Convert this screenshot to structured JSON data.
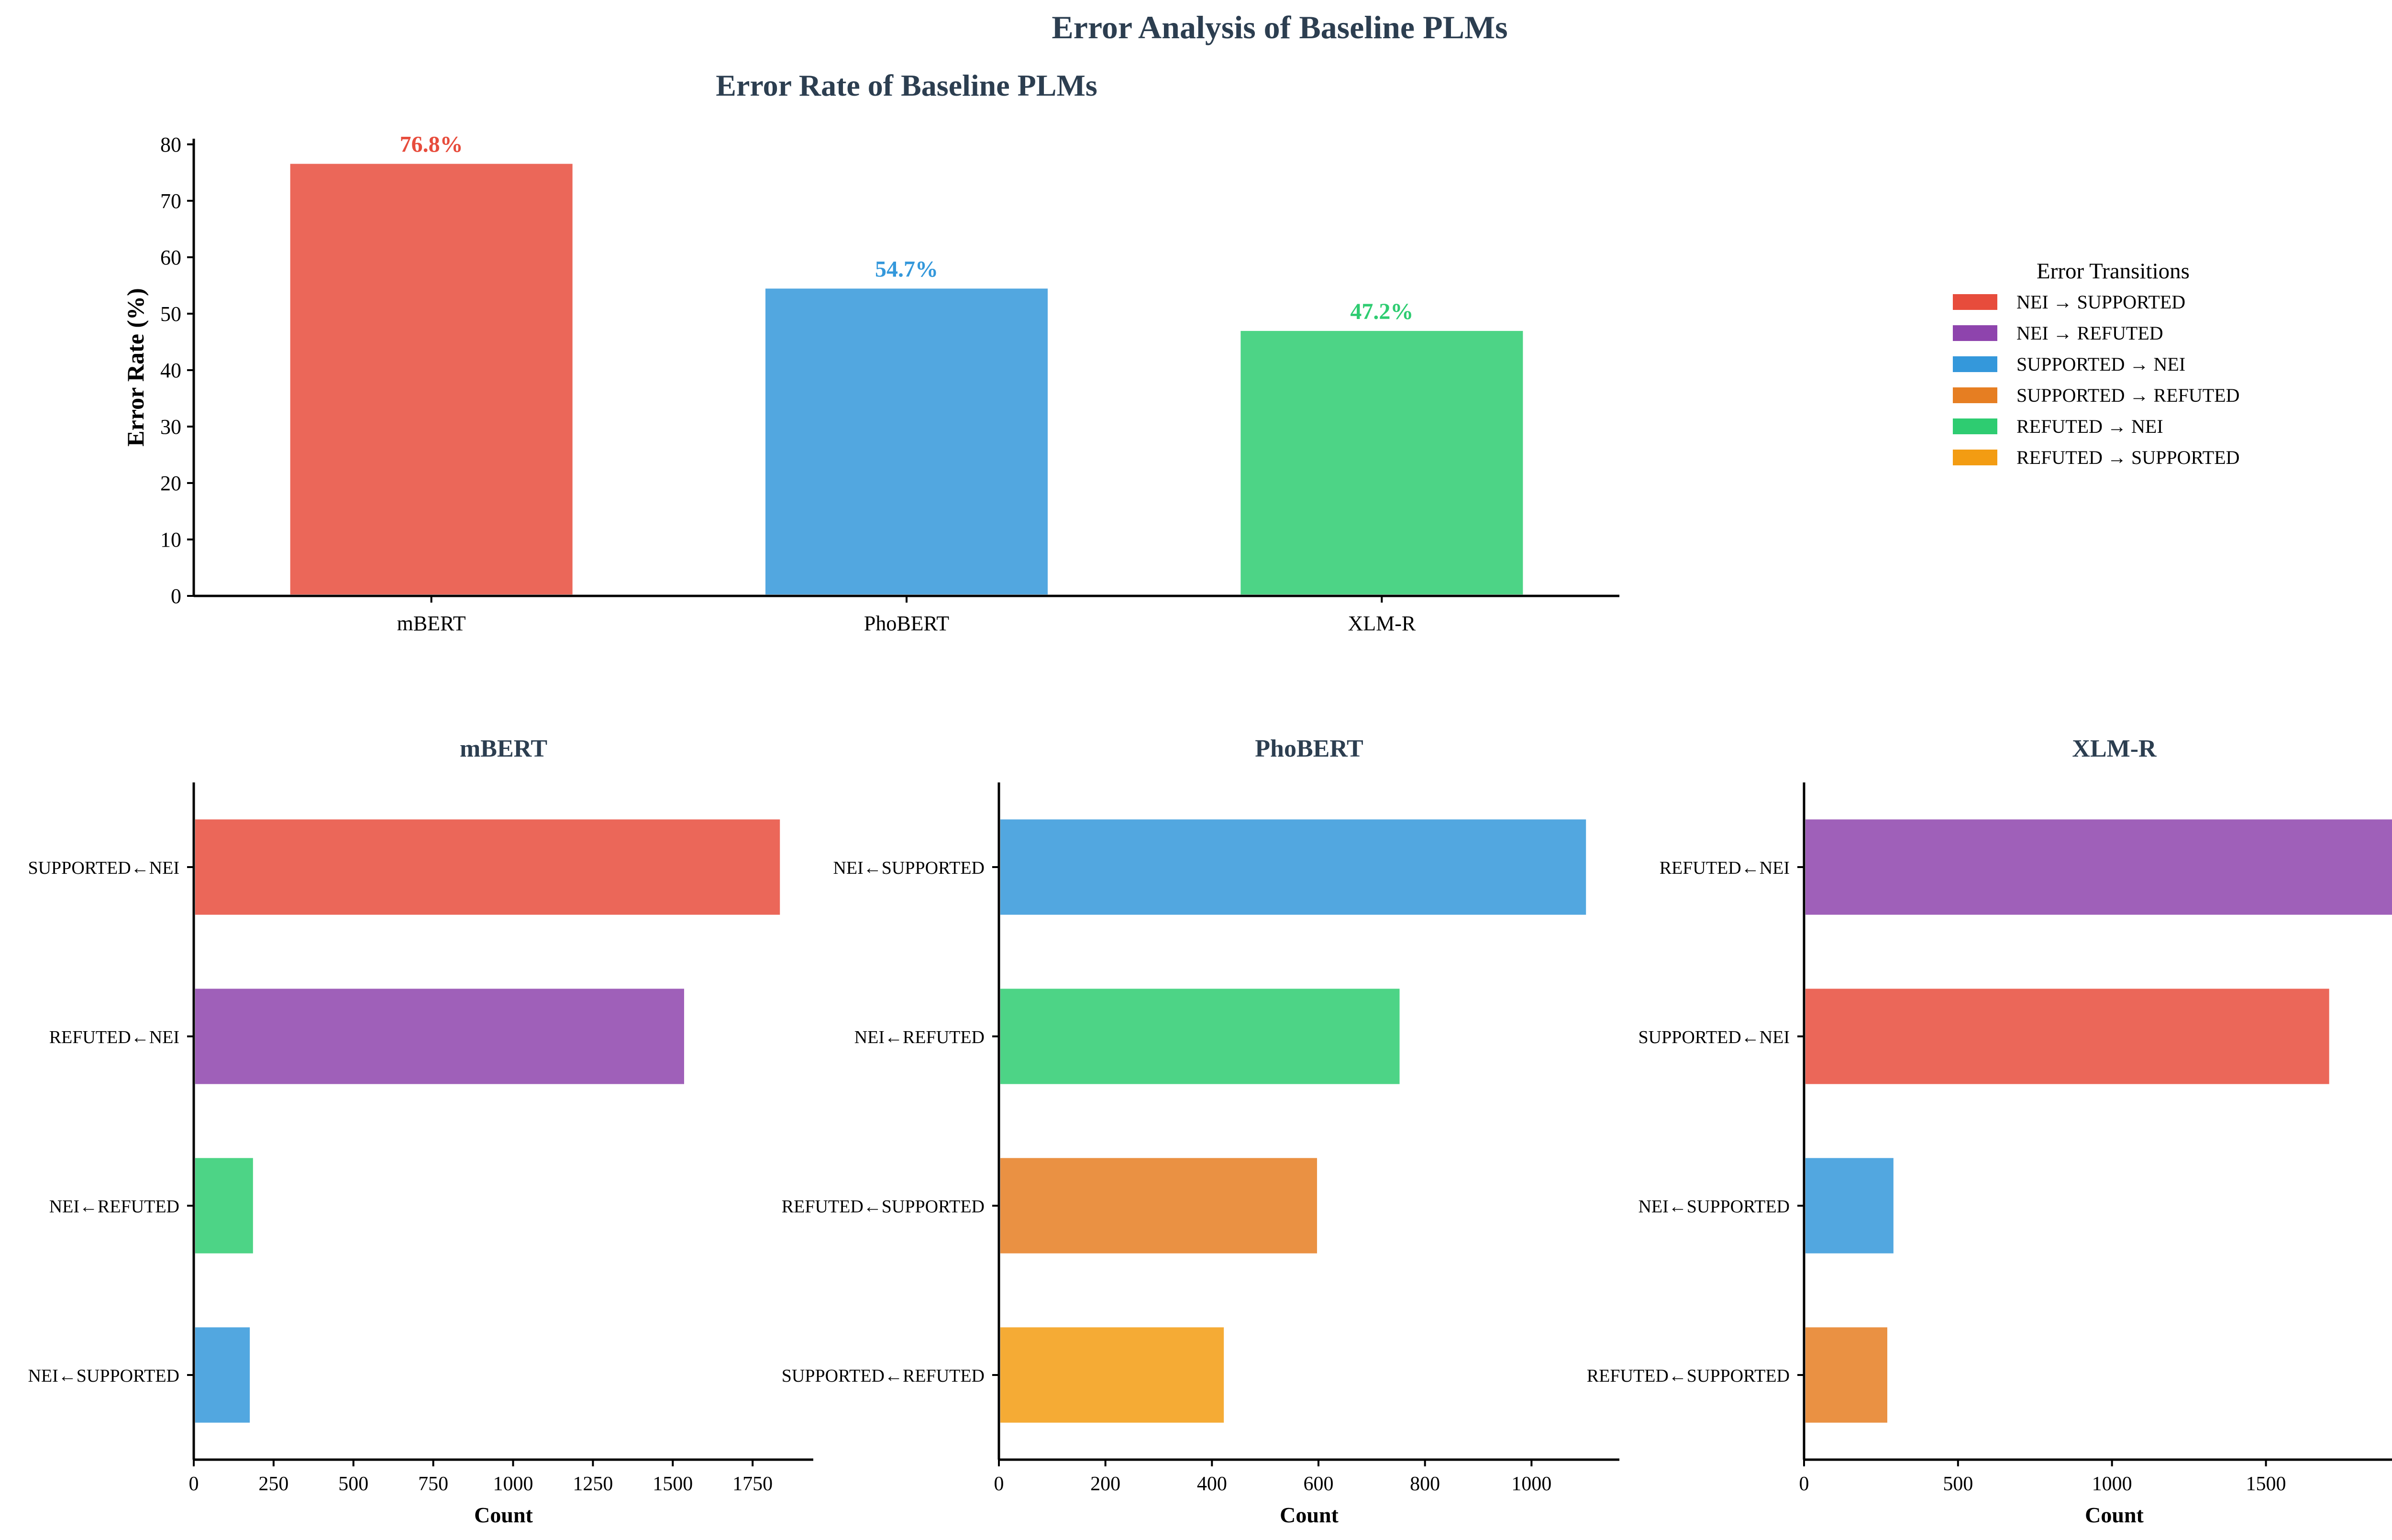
{
  "figure": {
    "title": "Error Analysis of Baseline PLMs"
  },
  "legend": {
    "title": "Error Transitions",
    "items": [
      {
        "label": "NEI → SUPPORTED",
        "color": "#e74c3c"
      },
      {
        "label": "NEI → REFUTED",
        "color": "#8e44ad"
      },
      {
        "label": "SUPPORTED → NEI",
        "color": "#3498db"
      },
      {
        "label": "SUPPORTED → REFUTED",
        "color": "#e67e22"
      },
      {
        "label": "REFUTED → NEI",
        "color": "#2ecc71"
      },
      {
        "label": "REFUTED → SUPPORTED",
        "color": "#f39c12"
      }
    ]
  },
  "chart_data": [
    {
      "type": "bar",
      "title": "Error Rate of Baseline PLMs",
      "xlabel": "",
      "ylabel": "Error Rate (%)",
      "categories": [
        "mBERT",
        "PhoBERT",
        "XLM-R"
      ],
      "values": [
        76.8,
        54.7,
        47.2
      ],
      "value_labels": [
        "76.8%",
        "54.7%",
        "47.2%"
      ],
      "colors": [
        "#e74c3c",
        "#3498db",
        "#2ecc71"
      ],
      "ylim": [
        0,
        81
      ],
      "yticks": [
        0,
        10,
        20,
        30,
        40,
        50,
        60,
        70,
        80
      ]
    },
    {
      "type": "bar",
      "orientation": "horizontal",
      "title": "mBERT",
      "xlabel": "Count",
      "categories": [
        "SUPPORTED←NEI",
        "REFUTED←NEI",
        "NEI←REFUTED",
        "NEI←SUPPORTED"
      ],
      "values": [
        1840,
        1540,
        190,
        180
      ],
      "colors": [
        "#e74c3c",
        "#8e44ad",
        "#2ecc71",
        "#3498db"
      ],
      "xlim": [
        0,
        1940
      ],
      "xticks": [
        0,
        250,
        500,
        750,
        1000,
        1250,
        1500,
        1750
      ]
    },
    {
      "type": "bar",
      "orientation": "horizontal",
      "title": "PhoBERT",
      "xlabel": "Count",
      "categories": [
        "NEI←SUPPORTED",
        "NEI←REFUTED",
        "REFUTED←SUPPORTED",
        "SUPPORTED←REFUTED"
      ],
      "values": [
        1105,
        755,
        600,
        425
      ],
      "colors": [
        "#3498db",
        "#2ecc71",
        "#e67e22",
        "#f39c12"
      ],
      "xlim": [
        0,
        1165
      ],
      "xticks": [
        0,
        200,
        400,
        600,
        800,
        1000
      ]
    },
    {
      "type": "bar",
      "orientation": "horizontal",
      "title": "XLM-R",
      "xlabel": "Count",
      "categories": [
        "REFUTED←NEI",
        "SUPPORTED←NEI",
        "NEI←SUPPORTED",
        "REFUTED←SUPPORTED"
      ],
      "values": [
        1920,
        1710,
        295,
        275
      ],
      "colors": [
        "#8e44ad",
        "#e74c3c",
        "#3498db",
        "#e67e22"
      ],
      "xlim": [
        0,
        2015
      ],
      "xticks": [
        0,
        500,
        1000,
        1500,
        2000
      ]
    }
  ]
}
